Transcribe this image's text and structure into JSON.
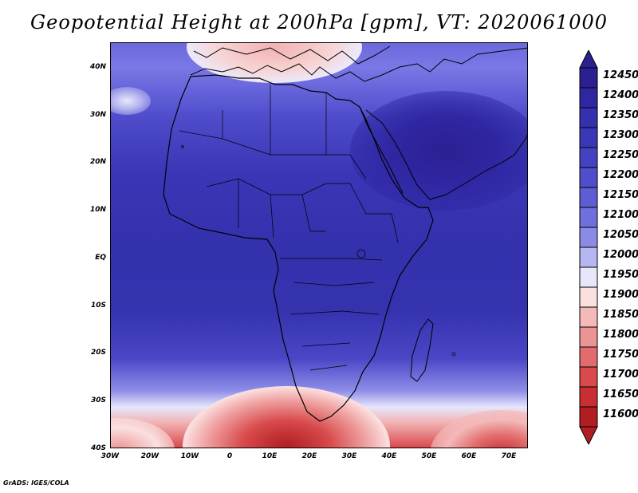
{
  "title": "Geopotential Height at 200hPa [gpm], VT: 2020061000",
  "footer": "GrADS: IGES/COLA",
  "axes": {
    "lat_labels": [
      "40N",
      "30N",
      "20N",
      "10N",
      "EQ",
      "10S",
      "20S",
      "30S",
      "40S"
    ],
    "lon_labels": [
      "30W",
      "20W",
      "10W",
      "0",
      "10E",
      "20E",
      "30E",
      "40E",
      "50E",
      "60E",
      "70E"
    ]
  },
  "map_extent": {
    "lon": [
      -30,
      75
    ],
    "lat": [
      -40,
      45
    ]
  },
  "colorbar": {
    "levels": [
      12450,
      12400,
      12350,
      12300,
      12250,
      12200,
      12150,
      12100,
      12050,
      12000,
      11950,
      11900,
      11850,
      11800,
      11750,
      11700,
      11650,
      11600
    ],
    "colors": [
      "#2c1f92",
      "#2f27a2",
      "#3430ae",
      "#3b38b8",
      "#4542c2",
      "#504ecb",
      "#5e5dd4",
      "#7070dd",
      "#8b8be6",
      "#b6b6f1",
      "#e7e7fb",
      "#fbe0e0",
      "#f4b9b9",
      "#ec9393",
      "#e26c6d",
      "#d84a4c",
      "#c92e31",
      "#b01e22"
    ]
  }
}
